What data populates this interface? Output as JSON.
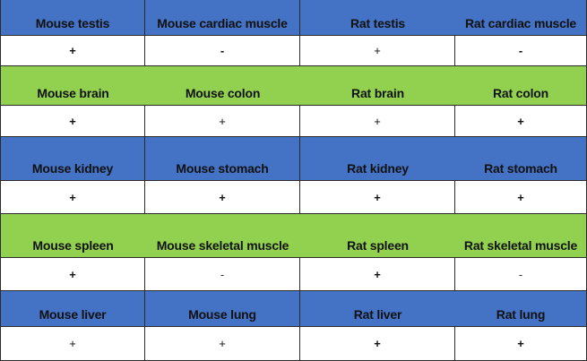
{
  "table": {
    "groups": [
      {
        "color": "#4472c4",
        "tissues": [
          "Mouse testis",
          "Mouse cardiac muscle",
          "Rat testis",
          "Rat cardiac muscle"
        ],
        "results": [
          "+",
          "-",
          "+",
          "-"
        ]
      },
      {
        "color": "#92d050",
        "tissues": [
          "Mouse brain",
          "Mouse colon",
          "Rat brain",
          "Rat colon"
        ],
        "results": [
          "+",
          "+",
          "+",
          "+"
        ]
      },
      {
        "color": "#4472c4",
        "tissues": [
          "Mouse kidney",
          "Mouse stomach",
          "Rat kidney",
          "Rat stomach"
        ],
        "results": [
          "+",
          "+",
          "+",
          "+"
        ]
      },
      {
        "color": "#92d050",
        "tissues": [
          "Mouse spleen",
          "Mouse skeletal muscle",
          "Rat spleen",
          "Rat skeletal muscle"
        ],
        "results": [
          "+",
          "-",
          "+",
          "-"
        ]
      },
      {
        "color": "#4472c4",
        "tissues": [
          "Mouse liver",
          "Mouse lung",
          "Rat liver",
          "Rat lung"
        ],
        "results": [
          "+",
          "+",
          "+",
          "+"
        ]
      }
    ]
  }
}
